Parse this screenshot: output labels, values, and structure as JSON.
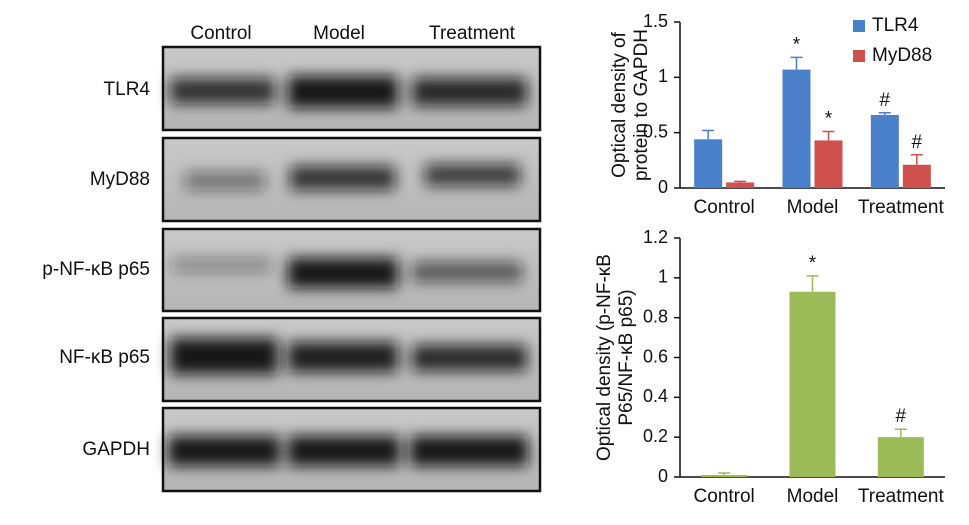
{
  "blot": {
    "lanes": [
      "Control",
      "Model",
      "Treatment"
    ],
    "rows": [
      "TLR4",
      "MyD88",
      "p-NF-κB p65",
      "NF-κB p65",
      "GAPDH"
    ]
  },
  "chart_data": [
    {
      "type": "bar",
      "ylabel": [
        "Optical density of",
        "protein to GAPDH"
      ],
      "categories": [
        "Control",
        "Model",
        "Treatment"
      ],
      "series": [
        {
          "name": "TLR4",
          "color": "#4a7fc9",
          "values": [
            0.44,
            1.07,
            0.66
          ],
          "errors": [
            0.08,
            0.11,
            0.02
          ],
          "annotations": [
            null,
            "*",
            "#"
          ]
        },
        {
          "name": "MyD88",
          "color": "#d0504d",
          "values": [
            0.05,
            0.43,
            0.21
          ],
          "errors": [
            0.01,
            0.08,
            0.09
          ],
          "annotations": [
            null,
            "*",
            "#"
          ]
        }
      ],
      "ylim": [
        0,
        1.5
      ],
      "yticks": [
        0,
        0.5,
        1,
        1.5
      ],
      "legend": "top-right"
    },
    {
      "type": "bar",
      "ylabel": [
        "Optical density (p-NF-κB",
        "P65/NF-κB p65)"
      ],
      "categories": [
        "Control",
        "Model",
        "Treatment"
      ],
      "values": [
        0.01,
        0.93,
        0.2
      ],
      "errors": [
        0.01,
        0.08,
        0.04
      ],
      "annotations": [
        null,
        "*",
        "#"
      ],
      "color": "#9bbb59",
      "ylim": [
        0,
        1.2
      ],
      "yticks": [
        0,
        0.2,
        0.4,
        0.6,
        0.8,
        1,
        1.2
      ]
    }
  ]
}
